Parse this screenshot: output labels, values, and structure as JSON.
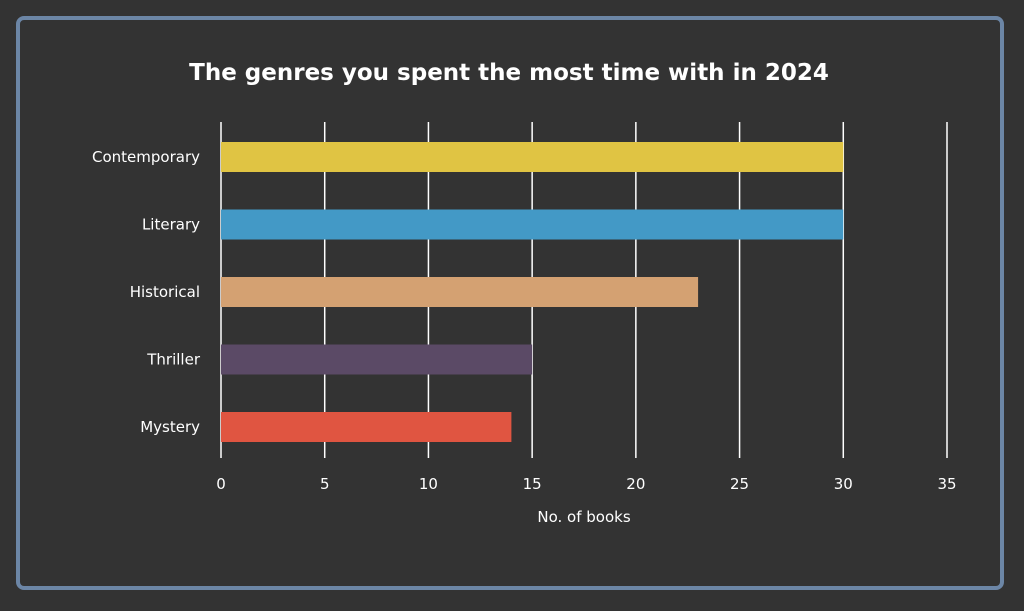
{
  "chart_data": {
    "type": "bar",
    "orientation": "horizontal",
    "title": "The genres you spent the most time with in 2024",
    "xlabel": "No. of books",
    "ylabel": "",
    "categories": [
      "Contemporary",
      "Literary",
      "Historical",
      "Thriller",
      "Mystery"
    ],
    "values": [
      30,
      30,
      23,
      15,
      14
    ],
    "colors": [
      "#e0c443",
      "#4399c6",
      "#d4a172",
      "#5b4a66",
      "#e05541"
    ],
    "xlim": [
      0,
      35
    ],
    "xticks": [
      0,
      5,
      10,
      15,
      20,
      25,
      30,
      35
    ],
    "grid": "vertical"
  },
  "theme": {
    "background": "#333333",
    "border": "#6c86a6",
    "text": "#ffffff",
    "grid": "#ffffff"
  }
}
